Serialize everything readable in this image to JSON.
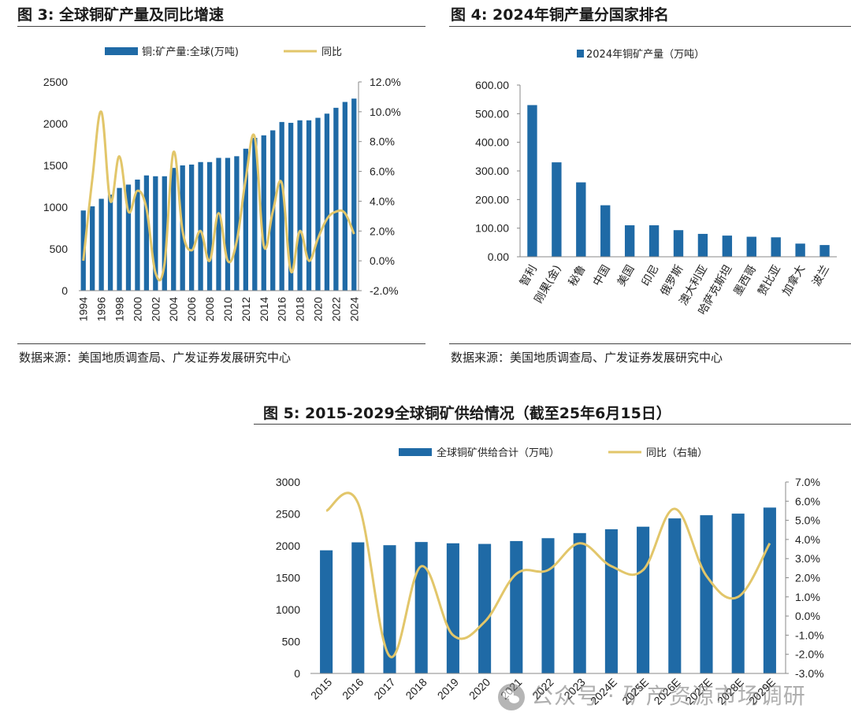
{
  "figures": [
    {
      "title": "图  3:  全球铜矿产量及同比增速",
      "source": "数据来源：美国地质调查局、广发证券发展研究中心"
    },
    {
      "title": "图  4:  2024年铜产量分国家排名",
      "source": "数据来源：美国地质调查局、广发证券发展研究中心"
    },
    {
      "title": "图  5:  2015-2029全球铜矿供给情况（截至25年6月15日）"
    }
  ],
  "watermark": "公众号 · 矿产资源市场调研",
  "chart_data": [
    {
      "type": "bar+line",
      "legend": [
        "铜:矿产量:全球(万吨)",
        "同比"
      ],
      "categories": [
        "1994",
        "1995",
        "1996",
        "1997",
        "1998",
        "1999",
        "2000",
        "2001",
        "2002",
        "2003",
        "2004",
        "2005",
        "2006",
        "2007",
        "2008",
        "2009",
        "2010",
        "2011",
        "2012",
        "2013",
        "2014",
        "2015",
        "2016",
        "2017",
        "2018",
        "2019",
        "2020",
        "2021",
        "2022",
        "2023",
        "2024"
      ],
      "x_tick_labels": [
        "1994",
        "1996",
        "1998",
        "2000",
        "2002",
        "2004",
        "2006",
        "2008",
        "2010",
        "2012",
        "2014",
        "2016",
        "2018",
        "2020",
        "2022",
        "2024"
      ],
      "series": [
        {
          "name": "铜:矿产量:全球(万吨)",
          "axis": "left",
          "type": "bar",
          "values": [
            960,
            1010,
            1100,
            1150,
            1230,
            1270,
            1330,
            1380,
            1370,
            1370,
            1470,
            1500,
            1510,
            1540,
            1540,
            1590,
            1590,
            1610,
            1700,
            1830,
            1860,
            1920,
            2020,
            2010,
            2040,
            2040,
            2070,
            2120,
            2190,
            2260,
            2300
          ]
        },
        {
          "name": "同比",
          "axis": "right",
          "type": "line",
          "values": [
            0.0,
            5.5,
            10.0,
            4.0,
            7.0,
            3.3,
            4.7,
            3.5,
            -0.8,
            -0.2,
            7.3,
            2.0,
            0.7,
            2.0,
            0.0,
            3.2,
            0.0,
            1.3,
            5.5,
            8.3,
            1.0,
            3.3,
            5.2,
            -0.7,
            2.0,
            0.0,
            1.5,
            2.8,
            3.3,
            3.2,
            1.8
          ]
        }
      ],
      "y_left": {
        "min": 0,
        "max": 2500,
        "ticks": [
          "0",
          "500",
          "1000",
          "1500",
          "2000",
          "2500"
        ]
      },
      "y_right": {
        "min": -2.0,
        "max": 12.0,
        "ticks": [
          "-2.0%",
          "0.0%",
          "2.0%",
          "4.0%",
          "6.0%",
          "8.0%",
          "10.0%",
          "12.0%"
        ]
      },
      "colors": {
        "bar": "#1f6aa6",
        "line": "#e2c66a"
      }
    },
    {
      "type": "bar",
      "legend": [
        "2024年铜矿产量（万吨）"
      ],
      "categories": [
        "智利",
        "刚果(金)",
        "秘鲁",
        "中国",
        "美国",
        "印尼",
        "俄罗斯",
        "澳大利亚",
        "哈萨克斯坦",
        "墨西哥",
        "赞比亚",
        "加拿大",
        "波兰"
      ],
      "series": [
        {
          "name": "2024年铜矿产量（万吨）",
          "values": [
            530,
            330,
            260,
            180,
            110,
            110,
            93,
            80,
            74,
            70,
            68,
            46,
            41
          ]
        }
      ],
      "y_axis": {
        "min": 0,
        "max": 600,
        "ticks": [
          "0.00",
          "100.00",
          "200.00",
          "300.00",
          "400.00",
          "500.00",
          "600.00"
        ]
      },
      "colors": {
        "bar": "#1f6aa6"
      }
    },
    {
      "type": "bar+line",
      "legend": [
        "全球铜矿供给合计（万吨）",
        "同比（右轴）"
      ],
      "categories": [
        "2015",
        "2016",
        "2017",
        "2018",
        "2019",
        "2020",
        "2021",
        "2022",
        "2023",
        "2024E",
        "2025E",
        "2026E",
        "2027E",
        "2028E",
        "2029E"
      ],
      "series": [
        {
          "name": "全球铜矿供给合计（万吨）",
          "axis": "left",
          "type": "bar",
          "values": [
            1930,
            2055,
            2010,
            2060,
            2040,
            2030,
            2075,
            2120,
            2200,
            2260,
            2300,
            2430,
            2480,
            2505,
            2600
          ]
        },
        {
          "name": "同比（右轴）",
          "axis": "right",
          "type": "line",
          "values": [
            5.5,
            5.9,
            -2.1,
            2.6,
            -1.0,
            -0.3,
            2.2,
            2.4,
            3.8,
            2.6,
            2.4,
            5.6,
            2.1,
            1.0,
            3.8
          ]
        }
      ],
      "y_left": {
        "min": 0,
        "max": 3000,
        "ticks": [
          "0",
          "500",
          "1000",
          "1500",
          "2000",
          "2500",
          "3000"
        ]
      },
      "y_right": {
        "min": -3.0,
        "max": 7.0,
        "ticks": [
          "-3.0%",
          "-2.0%",
          "-1.0%",
          "0.0%",
          "1.0%",
          "2.0%",
          "3.0%",
          "4.0%",
          "5.0%",
          "6.0%",
          "7.0%"
        ]
      },
      "colors": {
        "bar": "#1f6aa6",
        "line": "#e2c66a"
      }
    }
  ]
}
